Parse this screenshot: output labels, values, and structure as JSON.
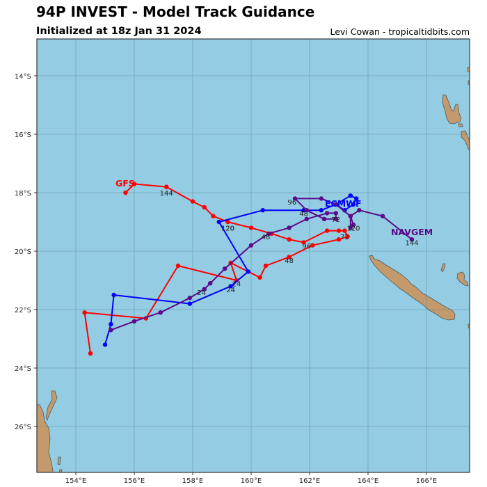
{
  "header": {
    "title": "94P INVEST - Model Track Guidance",
    "subtitle": "Initialized at 18z Jan 31 2024",
    "credit": "Levi Cowan - tropicaltidbits.com"
  },
  "map": {
    "ocean_color": "#94cde3",
    "land_color": "#c49a6c",
    "grid_color": "#5a7f8f",
    "lon_ticks": [
      "154°E",
      "156°E",
      "158°E",
      "160°E",
      "162°E",
      "164°E",
      "166°E"
    ],
    "lat_ticks": [
      "14°S",
      "16°S",
      "18°S",
      "20°S",
      "22°S",
      "24°S",
      "26°S"
    ]
  },
  "models": [
    {
      "name": "GFS",
      "color": "#ff0000"
    },
    {
      "name": "ECMWF",
      "color": "#0000ff"
    },
    {
      "name": "NAVGEM",
      "color": "#5a0a8a"
    }
  ],
  "chart_data": {
    "type": "map-tracks",
    "title": "94P INVEST - Model Track Guidance",
    "subtitle": "Initialized at 18z Jan 31 2024",
    "xlabel": "Longitude",
    "ylabel": "Latitude",
    "xlim": [
      152.7,
      167.5
    ],
    "ylim": [
      -27.6,
      -12.8
    ],
    "grid": true,
    "series": [
      {
        "name": "GFS",
        "color": "#ff0000",
        "points_lonlat": [
          [
            154.5,
            -23.5
          ],
          [
            154.3,
            -22.1
          ],
          [
            156.4,
            -22.3
          ],
          [
            157.5,
            -20.5
          ],
          [
            159.5,
            -21.0
          ],
          [
            159.3,
            -20.4
          ],
          [
            160.3,
            -20.9
          ],
          [
            160.5,
            -20.5
          ],
          [
            161.3,
            -20.2
          ],
          [
            162.1,
            -19.8
          ],
          [
            163.0,
            -19.6
          ],
          [
            163.3,
            -19.5
          ],
          [
            163.2,
            -19.3
          ],
          [
            163.0,
            -19.3
          ],
          [
            162.6,
            -19.3
          ],
          [
            161.8,
            -19.7
          ],
          [
            161.3,
            -19.6
          ],
          [
            160.7,
            -19.4
          ],
          [
            160.0,
            -19.2
          ],
          [
            159.2,
            -19.0
          ],
          [
            158.7,
            -18.8
          ],
          [
            158.4,
            -18.5
          ],
          [
            158.0,
            -18.3
          ],
          [
            157.1,
            -17.8
          ],
          [
            156.0,
            -17.7
          ],
          [
            155.7,
            -18.0
          ]
        ],
        "hour_labels": [
          {
            "hour": "24",
            "lon": 159.5,
            "lat": -21.2
          },
          {
            "hour": "48",
            "lon": 161.3,
            "lat": -20.4
          },
          {
            "hour": "72",
            "lon": 163.2,
            "lat": -19.6
          },
          {
            "hour": "96",
            "lon": 161.9,
            "lat": -19.9
          },
          {
            "hour": "120",
            "lon": 159.2,
            "lat": -19.3
          },
          {
            "hour": "144",
            "lon": 157.1,
            "lat": -18.1
          }
        ]
      },
      {
        "name": "ECMWF",
        "color": "#0000ff",
        "points_lonlat": [
          [
            155.0,
            -23.2
          ],
          [
            155.2,
            -22.5
          ],
          [
            155.3,
            -21.5
          ],
          [
            157.9,
            -21.8
          ],
          [
            159.3,
            -21.2
          ],
          [
            159.9,
            -20.7
          ],
          [
            158.9,
            -19.0
          ],
          [
            160.4,
            -18.6
          ],
          [
            161.8,
            -18.6
          ],
          [
            162.4,
            -18.6
          ],
          [
            162.9,
            -18.4
          ],
          [
            163.4,
            -18.1
          ],
          [
            163.6,
            -18.2
          ],
          [
            163.5,
            -18.4
          ],
          [
            163.2,
            -18.6
          ],
          [
            162.9,
            -18.4
          ]
        ],
        "hour_labels": [
          {
            "hour": "24",
            "lon": 159.3,
            "lat": -21.4
          },
          {
            "hour": "48",
            "lon": 161.8,
            "lat": -18.8
          },
          {
            "hour": "120",
            "lon": 159.2,
            "lat": -19.3
          }
        ]
      },
      {
        "name": "NAVGEM",
        "color": "#5a0a8a",
        "points_lonlat": [
          [
            155.2,
            -22.7
          ],
          [
            156.0,
            -22.4
          ],
          [
            156.9,
            -22.1
          ],
          [
            157.9,
            -21.6
          ],
          [
            158.4,
            -21.3
          ],
          [
            158.6,
            -21.1
          ],
          [
            159.1,
            -20.6
          ],
          [
            160.0,
            -19.8
          ],
          [
            160.6,
            -19.4
          ],
          [
            161.3,
            -19.2
          ],
          [
            161.9,
            -18.9
          ],
          [
            162.6,
            -18.7
          ],
          [
            162.9,
            -18.7
          ],
          [
            162.9,
            -18.9
          ],
          [
            162.5,
            -18.9
          ],
          [
            161.9,
            -18.6
          ],
          [
            161.5,
            -18.2
          ],
          [
            162.4,
            -18.2
          ],
          [
            162.9,
            -18.4
          ],
          [
            163.4,
            -18.8
          ],
          [
            163.5,
            -19.1
          ],
          [
            163.4,
            -19.2
          ],
          [
            163.4,
            -18.8
          ],
          [
            163.7,
            -18.6
          ],
          [
            164.5,
            -18.8
          ],
          [
            165.5,
            -19.6
          ]
        ],
        "hour_labels": [
          {
            "hour": "24",
            "lon": 158.3,
            "lat": -21.5
          },
          {
            "hour": "48",
            "lon": 160.5,
            "lat": -19.6
          },
          {
            "hour": "72",
            "lon": 162.9,
            "lat": -19.0
          },
          {
            "hour": "96",
            "lon": 161.4,
            "lat": -18.4
          },
          {
            "hour": "120",
            "lon": 163.5,
            "lat": -19.3
          },
          {
            "hour": "144",
            "lon": 165.5,
            "lat": -19.8
          }
        ]
      }
    ]
  }
}
